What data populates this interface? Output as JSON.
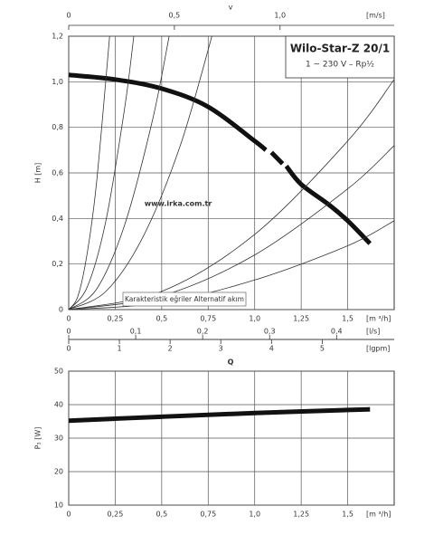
{
  "chart_data": [
    {
      "type": "line",
      "title": "Wilo-Star-Z 20/1",
      "subtitle": "1 ~ 230 V – Rp½",
      "annotations": [
        "www.irka.com.tr",
        "Karakteristik eğriler Alternatif akım"
      ],
      "x_label": "[m ³/h]",
      "y_label": "H [m]",
      "x_title": "Q",
      "xlim": [
        0,
        1.75
      ],
      "xticks": [
        0,
        {
          "value": 0.25,
          "label": "0,25"
        },
        {
          "value": 0.5,
          "label": "0,5"
        },
        {
          "value": 0.75,
          "label": "0,75"
        },
        {
          "value": 1.0,
          "label": "1,0"
        },
        {
          "value": 1.25,
          "label": "1,25"
        },
        {
          "value": 1.5,
          "label": "1,5"
        }
      ],
      "ylim": [
        0,
        1.2
      ],
      "yticks": [
        0,
        {
          "value": 0.2,
          "label": "0,2"
        },
        {
          "value": 0.4,
          "label": "0,4"
        },
        {
          "value": 0.6,
          "label": "0,6"
        },
        {
          "value": 0.8,
          "label": "0,8"
        },
        {
          "value": 1.0,
          "label": "1,0"
        },
        {
          "value": 1.2,
          "label": "1,2"
        }
      ],
      "grid": true,
      "secondary_x_axes": [
        {
          "title": "v",
          "label": "[m/s]",
          "xlim": [
            0,
            1.54
          ],
          "xticks": [
            0,
            {
              "value": 0.5,
              "label": "0,5"
            },
            {
              "value": 1.0,
              "label": "1,0"
            }
          ]
        },
        {
          "label": "[l/s]",
          "xlim": [
            0,
            0.486
          ],
          "xticks": [
            0,
            {
              "value": 0.1,
              "label": "0,1"
            },
            {
              "value": 0.2,
              "label": "0,2"
            },
            {
              "value": 0.3,
              "label": "0,3"
            },
            {
              "value": 0.4,
              "label": "0,4"
            }
          ]
        },
        {
          "label": "[lgpm]",
          "xlim": [
            0,
            6.42
          ],
          "xticks": [
            0,
            1,
            2,
            3,
            4,
            5
          ]
        }
      ],
      "series": [
        {
          "color": "#111111",
          "line_width": 5,
          "x": [
            0,
            0.25,
            0.5,
            0.75,
            1.0,
            1.06,
            1.08,
            1.09,
            1.15,
            1.16,
            1.17,
            1.25,
            1.4,
            1.5,
            1.62
          ],
          "values": [
            1.03,
            1.01,
            0.97,
            0.89,
            0.74,
            0.7,
            null,
            0.69,
            0.64,
            null,
            0.63,
            0.55,
            0.46,
            0.39,
            0.29
          ]
        },
        {
          "color": "#333333",
          "line_width": 0.8,
          "x": [
            0,
            0.05,
            0.1,
            0.15,
            0.22
          ],
          "values": [
            0,
            0.06,
            0.25,
            0.56,
            1.2
          ]
        },
        {
          "color": "#333333",
          "line_width": 0.8,
          "x": [
            0,
            0.1,
            0.2,
            0.3,
            0.35
          ],
          "values": [
            0,
            0.1,
            0.39,
            0.88,
            1.2
          ]
        },
        {
          "color": "#333333",
          "line_width": 0.8,
          "x": [
            0,
            0.15,
            0.3,
            0.45,
            0.54
          ],
          "values": [
            0,
            0.09,
            0.37,
            0.83,
            1.2
          ]
        },
        {
          "color": "#333333",
          "line_width": 0.8,
          "x": [
            0,
            0.2,
            0.4,
            0.6,
            0.77
          ],
          "values": [
            0,
            0.08,
            0.32,
            0.72,
            1.2
          ]
        },
        {
          "color": "#333333",
          "line_width": 0.8,
          "x": [
            0,
            0.5,
            1.0,
            1.5,
            1.75
          ],
          "values": [
            0,
            0.08,
            0.33,
            0.74,
            1.01
          ]
        },
        {
          "color": "#333333",
          "line_width": 0.8,
          "x": [
            0,
            0.5,
            1.0,
            1.5,
            1.75
          ],
          "values": [
            0,
            0.06,
            0.24,
            0.53,
            0.72
          ]
        },
        {
          "color": "#333333",
          "line_width": 0.8,
          "x": [
            0,
            0.5,
            1.0,
            1.5,
            1.75
          ],
          "values": [
            0,
            0.03,
            0.13,
            0.28,
            0.39
          ]
        }
      ]
    },
    {
      "type": "line",
      "x_label": "[m ³/h]",
      "y_label": "P₁ [W]",
      "xlim": [
        0,
        1.75
      ],
      "xticks": [
        0,
        {
          "value": 0.25,
          "label": "0,25"
        },
        {
          "value": 0.5,
          "label": "0,5"
        },
        {
          "value": 0.75,
          "label": "0,75"
        },
        {
          "value": 1.0,
          "label": "1,0"
        },
        {
          "value": 1.25,
          "label": "1,25"
        },
        {
          "value": 1.5,
          "label": "1,5"
        }
      ],
      "ylim": [
        10,
        50
      ],
      "yticks": [
        10,
        20,
        30,
        40,
        50
      ],
      "grid": true,
      "series": [
        {
          "color": "#111111",
          "line_width": 5,
          "x": [
            0,
            0.5,
            1.0,
            1.5,
            1.62
          ],
          "values": [
            35.2,
            36.4,
            37.5,
            38.4,
            38.6
          ]
        }
      ]
    }
  ]
}
